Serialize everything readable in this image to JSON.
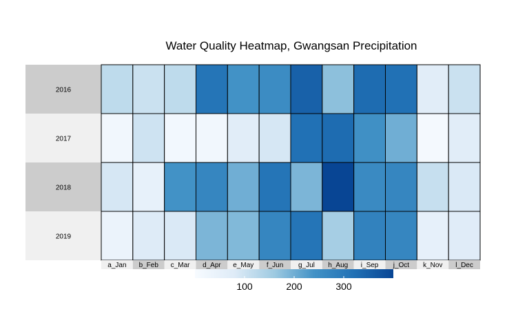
{
  "chart_data": {
    "type": "heatmap",
    "title": "Water Quality Heatmap, Gwangsan Precipitation",
    "rows": [
      "2016",
      "2017",
      "2018",
      "2019"
    ],
    "columns": [
      "a_Jan",
      "b_Feb",
      "c_Mar",
      "d_Apr",
      "e_May",
      "f_Jun",
      "g_Jul",
      "h_Aug",
      "i_Sep",
      "j_Oct",
      "k_Nov",
      "l_Dec"
    ],
    "values": [
      [
        120,
        105,
        120,
        310,
        240,
        255,
        350,
        175,
        330,
        320,
        70,
        105
      ],
      [
        20,
        100,
        15,
        20,
        70,
        90,
        320,
        330,
        245,
        200,
        10,
        70
      ],
      [
        90,
        50,
        240,
        270,
        200,
        310,
        190,
        420,
        260,
        270,
        110,
        85
      ],
      [
        40,
        80,
        85,
        190,
        185,
        270,
        310,
        150,
        280,
        270,
        55,
        75
      ]
    ],
    "legend": {
      "ticks": [
        100,
        200,
        300
      ],
      "range": [
        0,
        400
      ],
      "colors": [
        "#f7fbff",
        "#deebf7",
        "#9ecae1",
        "#4292c6",
        "#2171b5",
        "#084594"
      ]
    },
    "grid": false
  }
}
